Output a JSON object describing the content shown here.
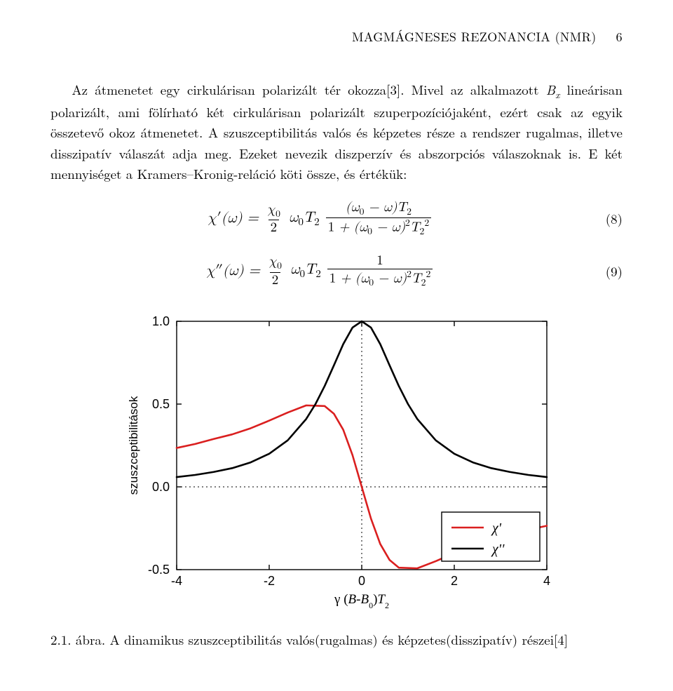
{
  "header": {
    "title": "MAGMÁGNESES REZONANCIA (NMR)",
    "page": "6"
  },
  "para1": "Az átmenetet egy cirkulárisan polarizált tér okozza[3]. Mivel az alkalmazott Bₓ lineárisan polarizált, ami fölírható két cirkulárisan polarizált szuperpozíciójaként, ezért csak az egyik összetevő okoz átmenetet. A szuszceptibilitás valós és képzetes része a rendszer rugalmas, illetve disszipatív válaszát adja meg. Ezeket nevezik diszperzív és abszorpciós válaszoknak is. E két mennyiséget a Kramers–Kronig-reláció köti össze, és értékük:",
  "eq8": {
    "num": "(8)"
  },
  "eq9": {
    "num": "(9)"
  },
  "chart": {
    "type": "line",
    "xlim": [
      -4,
      4
    ],
    "ylim": [
      -0.5,
      1.0
    ],
    "xticks": [
      -4,
      -2,
      0,
      2,
      4
    ],
    "yticks": [
      -0.5,
      0.0,
      0.5,
      1.0
    ],
    "xtick_labels": [
      "-4",
      "-2",
      "0",
      "2",
      "4"
    ],
    "ytick_labels": [
      "-0.5",
      "0.0",
      "0.5",
      "1.0"
    ],
    "ylabel": "szuszceptibilitások",
    "xlabel": "γ (B-B₀)T₂",
    "background_color": "#ffffff",
    "series": [
      {
        "name": "χ'",
        "color": "#da1f1f",
        "width": 2.6,
        "data": [
          [
            -4,
            0.235
          ],
          [
            -3.6,
            0.259
          ],
          [
            -3.2,
            0.289
          ],
          [
            -2.8,
            0.317
          ],
          [
            -2.4,
            0.354
          ],
          [
            -2.0,
            0.4
          ],
          [
            -1.6,
            0.449
          ],
          [
            -1.2,
            0.492
          ],
          [
            -0.8,
            0.488
          ],
          [
            -0.6,
            0.441
          ],
          [
            -0.4,
            0.345
          ],
          [
            -0.2,
            0.192
          ],
          [
            0,
            0.0
          ],
          [
            0.2,
            -0.192
          ],
          [
            0.4,
            -0.345
          ],
          [
            0.6,
            -0.441
          ],
          [
            0.8,
            -0.488
          ],
          [
            1.2,
            -0.492
          ],
          [
            1.6,
            -0.449
          ],
          [
            2.0,
            -0.4
          ],
          [
            2.4,
            -0.354
          ],
          [
            2.8,
            -0.317
          ],
          [
            3.2,
            -0.289
          ],
          [
            3.6,
            -0.259
          ],
          [
            4,
            -0.235
          ]
        ]
      },
      {
        "name": "χ''",
        "color": "#000000",
        "width": 2.6,
        "data": [
          [
            -4,
            0.059
          ],
          [
            -3.6,
            0.072
          ],
          [
            -3.2,
            0.09
          ],
          [
            -2.8,
            0.113
          ],
          [
            -2.4,
            0.148
          ],
          [
            -2.0,
            0.2
          ],
          [
            -1.6,
            0.281
          ],
          [
            -1.2,
            0.41
          ],
          [
            -1.0,
            0.5
          ],
          [
            -0.8,
            0.61
          ],
          [
            -0.6,
            0.735
          ],
          [
            -0.4,
            0.862
          ],
          [
            -0.2,
            0.962
          ],
          [
            0,
            1.0
          ],
          [
            0.2,
            0.962
          ],
          [
            0.4,
            0.862
          ],
          [
            0.6,
            0.735
          ],
          [
            0.8,
            0.61
          ],
          [
            1.0,
            0.5
          ],
          [
            1.2,
            0.41
          ],
          [
            1.6,
            0.281
          ],
          [
            2.0,
            0.2
          ],
          [
            2.4,
            0.148
          ],
          [
            2.8,
            0.113
          ],
          [
            3.2,
            0.09
          ],
          [
            3.6,
            0.072
          ],
          [
            4,
            0.059
          ]
        ]
      }
    ],
    "legend_labels": [
      "χ'",
      "χ''"
    ]
  },
  "caption": "2.1. ábra.  A dinamikus szuszceptibilitás valós(rugalmas) és képzetes(disszipatív) részei[4]"
}
